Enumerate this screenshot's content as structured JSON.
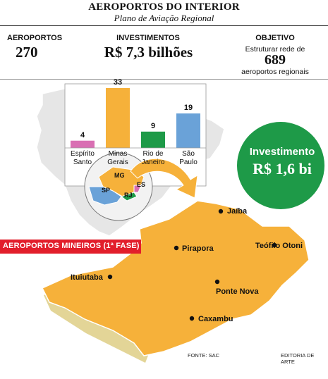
{
  "header": {
    "title": "AEROPORTOS DO INTERIOR",
    "subtitle": "Plano de Aviação Regional"
  },
  "stats": {
    "airports_label": "AEROPORTOS",
    "airports_value": "270",
    "investment_label": "INVESTIMENTOS",
    "investment_value": "R$ 7,3 bilhões",
    "objective_label": "OBJETIVO",
    "objective_text": "Estruturar rede de",
    "objective_number": "689",
    "objective_suffix": "aeroportos regionais"
  },
  "chart_data": {
    "type": "bar",
    "categories": [
      "Espírito Santo",
      "Minas Gerais",
      "Rio de Janeiro",
      "São Paulo"
    ],
    "category_lines": [
      [
        "Espírito",
        "Santo"
      ],
      [
        "Minas",
        "Gerais"
      ],
      [
        "Rio de",
        "Janeiro"
      ],
      [
        "São",
        "Paulo"
      ]
    ],
    "values": [
      4,
      33,
      9,
      19
    ],
    "colors": [
      "#d96fb3",
      "#f6b13a",
      "#1e9a48",
      "#6aa2d8"
    ],
    "ylim": [
      0,
      33
    ]
  },
  "inset_states": {
    "mg": "MG",
    "sp": "SP",
    "rj": "RJ",
    "es": "ES"
  },
  "badge": {
    "line1": "Investimento",
    "line2": "R$ 1,6 bi",
    "color": "#1e9a48"
  },
  "section": {
    "title": "AEROPORTOS MINEIROS (1ª FASE)",
    "color": "#e21e2b"
  },
  "cities": [
    {
      "name": "Jaíba"
    },
    {
      "name": "Pirapora"
    },
    {
      "name": "Teófilo Otoni"
    },
    {
      "name": "Ituiutaba"
    },
    {
      "name": "Ponte Nova"
    },
    {
      "name": "Caxambu"
    }
  ],
  "map_colors": {
    "mg_fill": "#f6b13a",
    "mg_side": "#e3d597",
    "brazil": "#e6e6e6"
  },
  "footer": {
    "source": "FONTE: SAC",
    "credit": "EDITORIA DE ARTE"
  }
}
